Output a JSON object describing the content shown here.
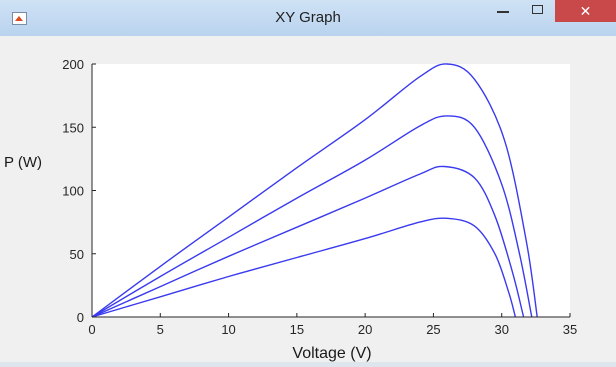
{
  "window": {
    "title": "XY Graph",
    "close_glyph": "✕",
    "icons": {
      "app": "matlab-figure-icon",
      "minimize": "minimize-icon",
      "maximize": "maximize-icon",
      "close": "close-icon"
    }
  },
  "colors": {
    "series": "#3a3aef",
    "titlebar": "#c4daf2",
    "close_button": "#c9484a"
  },
  "chart_data": {
    "type": "line",
    "title": "",
    "xlabel": "Voltage (V)",
    "ylabel": "P (W)",
    "xlim": [
      0,
      35
    ],
    "ylim": [
      0,
      200
    ],
    "xticks": [
      0,
      5,
      10,
      15,
      20,
      25,
      30,
      35
    ],
    "yticks": [
      0,
      50,
      100,
      150,
      200
    ],
    "grid": false,
    "series": [
      {
        "x": [
          0,
          5,
          10,
          15,
          20,
          24,
          26,
          28,
          29.5,
          30.5,
          31
        ],
        "y": [
          0,
          16,
          32,
          47,
          62,
          75,
          78,
          72,
          50,
          20,
          0
        ]
      },
      {
        "x": [
          0,
          5,
          10,
          15,
          20,
          24,
          25.8,
          28,
          29.5,
          30.8,
          31.6
        ],
        "y": [
          0,
          24,
          48,
          71,
          94,
          113,
          119,
          110,
          80,
          35,
          0
        ]
      },
      {
        "x": [
          0,
          5,
          10,
          15,
          20,
          24,
          26,
          28,
          30,
          31.3,
          32.2
        ],
        "y": [
          0,
          32,
          63,
          94,
          124,
          151,
          159,
          150,
          105,
          50,
          0
        ]
      },
      {
        "x": [
          0,
          5,
          10,
          15,
          20,
          24,
          26,
          28,
          30.2,
          31.8,
          32.6
        ],
        "y": [
          0,
          40,
          79,
          118,
          156,
          190,
          200,
          188,
          140,
          60,
          0
        ]
      }
    ]
  }
}
